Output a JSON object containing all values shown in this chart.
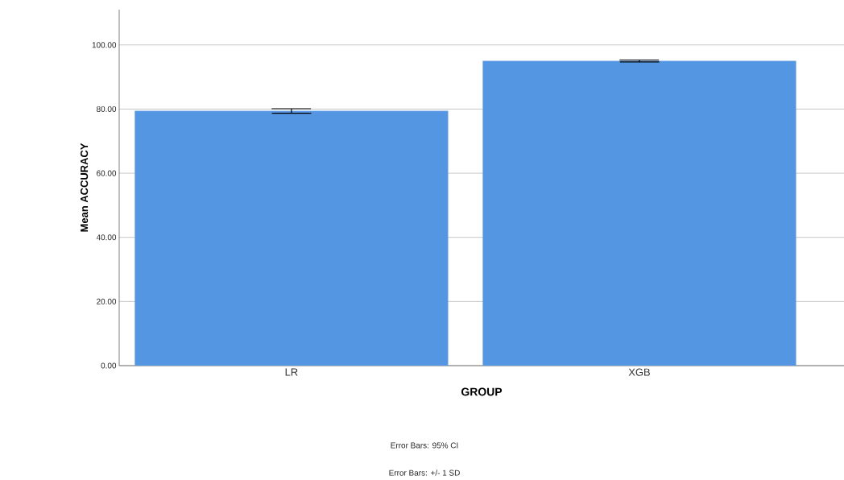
{
  "chart_data": {
    "type": "bar",
    "xlabel": "GROUP",
    "ylabel": "Mean ACCURACY",
    "categories": [
      "LR",
      "XGB"
    ],
    "values": [
      79.4,
      95.0
    ],
    "errors": [
      0.7,
      0.3
    ],
    "color": "#5596e3",
    "ylim": [
      0,
      111
    ],
    "yticks": [
      {
        "value": 0,
        "label": "0.00"
      },
      {
        "value": 20,
        "label": "20.00"
      },
      {
        "value": 40,
        "label": "40.00"
      },
      {
        "value": 60,
        "label": "60.00"
      },
      {
        "value": 80,
        "label": "80.00"
      },
      {
        "value": 100,
        "label": "100.00"
      }
    ],
    "grid": "y",
    "annotations": [
      "Error Bars: 95% CI",
      "Error Bars: +/- 1 SD"
    ]
  }
}
